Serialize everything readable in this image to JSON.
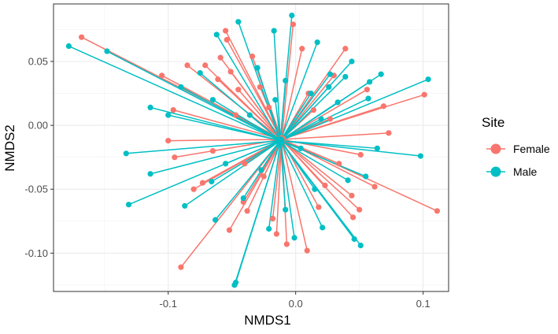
{
  "chart_data": {
    "type": "scatter",
    "subtype": "ordination-spider",
    "title": "",
    "xlabel": "NMDS1",
    "ylabel": "NMDS2",
    "xlim": [
      -0.19,
      0.12
    ],
    "ylim": [
      -0.13,
      0.095
    ],
    "x_ticks": [
      -0.1,
      0.0,
      0.1
    ],
    "x_tick_labels": [
      "-0.1",
      "0.0",
      "0.1"
    ],
    "y_ticks": [
      0.05,
      0.0,
      -0.05,
      -0.1
    ],
    "y_tick_labels": [
      "0.05",
      "0.00",
      "-0.05",
      "-0.10"
    ],
    "grid": true,
    "legend": {
      "title": "Site",
      "position": "right"
    },
    "series": [
      {
        "name": "Female",
        "color": "#F8766D",
        "centroid": [
          -0.011,
          -0.011
        ],
        "points": [
          [
            -0.168,
            0.069
          ],
          [
            -0.105,
            0.039
          ],
          [
            -0.096,
            0.012
          ],
          [
            -0.085,
            0.047
          ],
          [
            -0.1,
            -0.012
          ],
          [
            -0.095,
            -0.025
          ],
          [
            -0.09,
            -0.111
          ],
          [
            -0.073,
            -0.045
          ],
          [
            -0.071,
            0.047
          ],
          [
            -0.061,
            0.036
          ],
          [
            -0.059,
            0.053
          ],
          [
            -0.054,
            0.067
          ],
          [
            -0.055,
            0.074
          ],
          [
            -0.051,
            0.042
          ],
          [
            -0.052,
            -0.082
          ],
          [
            -0.045,
            0.028
          ],
          [
            -0.041,
            -0.06
          ],
          [
            -0.038,
            -0.067
          ],
          [
            -0.034,
            0.054
          ],
          [
            -0.028,
            0.03
          ],
          [
            -0.021,
            0.014
          ],
          [
            -0.018,
            -0.073
          ],
          [
            -0.015,
            -0.085
          ],
          [
            -0.007,
            -0.093
          ],
          [
            -0.002,
            0.079
          ],
          [
            0.009,
            -0.098
          ],
          [
            0.014,
            0.012
          ],
          [
            0.018,
            -0.064
          ],
          [
            0.023,
            -0.047
          ],
          [
            0.03,
            0.039
          ],
          [
            0.039,
            0.06
          ],
          [
            0.044,
            -0.055
          ],
          [
            0.051,
            -0.023
          ],
          [
            0.056,
            0.028
          ],
          [
            0.062,
            -0.048
          ],
          [
            0.069,
            0.015
          ],
          [
            0.073,
            -0.006
          ],
          [
            0.101,
            0.024
          ],
          [
            0.111,
            -0.067
          ],
          [
            0.05,
            -0.066
          ],
          [
            0.045,
            -0.072
          ],
          [
            -0.04,
            -0.03
          ],
          [
            -0.065,
            -0.02
          ],
          [
            -0.047,
            0.008
          ],
          [
            0.01,
            0.025
          ],
          [
            0.027,
            0.005
          ],
          [
            -0.08,
            -0.05
          ],
          [
            0.034,
            -0.03
          ],
          [
            0.005,
            0.06
          ],
          [
            -0.025,
            -0.04
          ]
        ]
      },
      {
        "name": "Male",
        "color": "#00BFC4",
        "centroid": [
          -0.012,
          -0.012
        ],
        "points": [
          [
            -0.178,
            0.062
          ],
          [
            -0.148,
            0.058
          ],
          [
            -0.133,
            -0.022
          ],
          [
            -0.131,
            -0.062
          ],
          [
            -0.114,
            0.014
          ],
          [
            -0.114,
            -0.038
          ],
          [
            -0.1,
            0.008
          ],
          [
            -0.087,
            -0.063
          ],
          [
            -0.075,
            0.041
          ],
          [
            -0.066,
            -0.044
          ],
          [
            -0.063,
            -0.074
          ],
          [
            -0.065,
            0.02
          ],
          [
            -0.062,
            0.071
          ],
          [
            -0.047,
            -0.123
          ],
          [
            -0.048,
            -0.125
          ],
          [
            -0.045,
            0.081
          ],
          [
            -0.041,
            -0.057
          ],
          [
            -0.036,
            0.008
          ],
          [
            -0.03,
            0.045
          ],
          [
            -0.021,
            -0.081
          ],
          [
            -0.017,
            0.074
          ],
          [
            -0.016,
            0.02
          ],
          [
            -0.008,
            -0.066
          ],
          [
            -0.003,
            0.086
          ],
          [
            -0.001,
            -0.088
          ],
          [
            0.004,
            -0.018
          ],
          [
            0.012,
            0.025
          ],
          [
            0.017,
            0.065
          ],
          [
            0.021,
            -0.08
          ],
          [
            0.027,
            0.04
          ],
          [
            0.041,
            -0.043
          ],
          [
            0.044,
            0.05
          ],
          [
            0.046,
            -0.089
          ],
          [
            0.051,
            -0.094
          ],
          [
            0.057,
            0.021
          ],
          [
            0.058,
            0.034
          ],
          [
            0.064,
            -0.018
          ],
          [
            0.067,
            0.04
          ],
          [
            0.098,
            -0.024
          ],
          [
            0.104,
            0.036
          ],
          [
            0.039,
            0.038
          ],
          [
            0.033,
            0.018
          ],
          [
            -0.027,
            -0.035
          ],
          [
            -0.055,
            -0.03
          ],
          [
            0.015,
            -0.05
          ],
          [
            0.026,
            0.03
          ],
          [
            -0.008,
            0.035
          ],
          [
            0.055,
            -0.04
          ],
          [
            -0.09,
            0.03
          ],
          [
            0.02,
            0.005
          ]
        ]
      }
    ]
  }
}
